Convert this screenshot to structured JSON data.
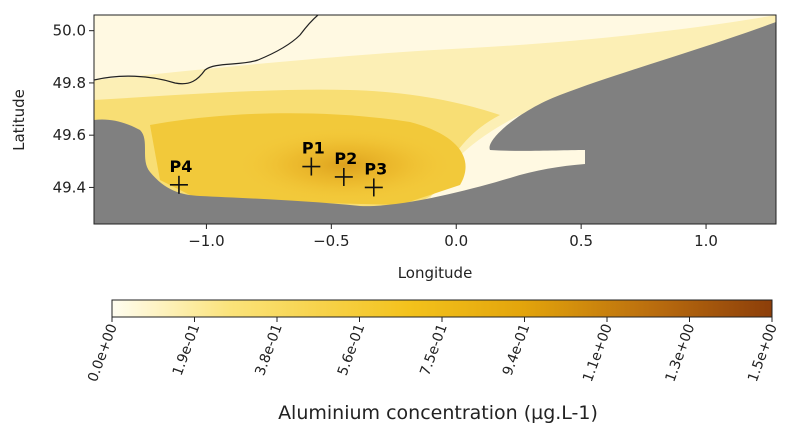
{
  "map": {
    "xlabel": "Longitude",
    "ylabel": "Latitude",
    "x_ticks": [
      "−1.0",
      "−0.5",
      "0.0",
      "0.5",
      "1.0"
    ],
    "x_tick_values": [
      -1.0,
      -0.5,
      0.0,
      0.5,
      1.0
    ],
    "y_ticks": [
      "49.4",
      "49.6",
      "49.8",
      "50.0"
    ],
    "y_tick_values": [
      49.4,
      49.6,
      49.8,
      50.0
    ],
    "xlim": [
      -1.45,
      1.28
    ],
    "ylim": [
      49.26,
      50.06
    ],
    "land_color": "#808080",
    "points": [
      {
        "label": "P1",
        "lon": -0.58,
        "lat": 49.48
      },
      {
        "label": "P2",
        "lon": -0.45,
        "lat": 49.44
      },
      {
        "label": "P3",
        "lon": -0.33,
        "lat": 49.4
      },
      {
        "label": "P4",
        "lon": -1.11,
        "lat": 49.41
      }
    ]
  },
  "colorbar": {
    "title": "Aluminium concentration (µg.L-1)",
    "range": [
      0,
      1.5
    ],
    "ticks": [
      "0.0e+00",
      "1.9e-01",
      "3.8e-01",
      "5.6e-01",
      "7.5e-01",
      "9.4e-01",
      "1.1e+00",
      "1.3e+00",
      "1.5e+00"
    ],
    "tick_values": [
      0,
      0.1875,
      0.375,
      0.5625,
      0.75,
      0.9375,
      1.125,
      1.3125,
      1.5
    ],
    "colors": [
      "#fffdf0",
      "#fbe37a",
      "#f3c21c",
      "#e3a50c",
      "#ba6d0e",
      "#8c3e0a"
    ]
  }
}
